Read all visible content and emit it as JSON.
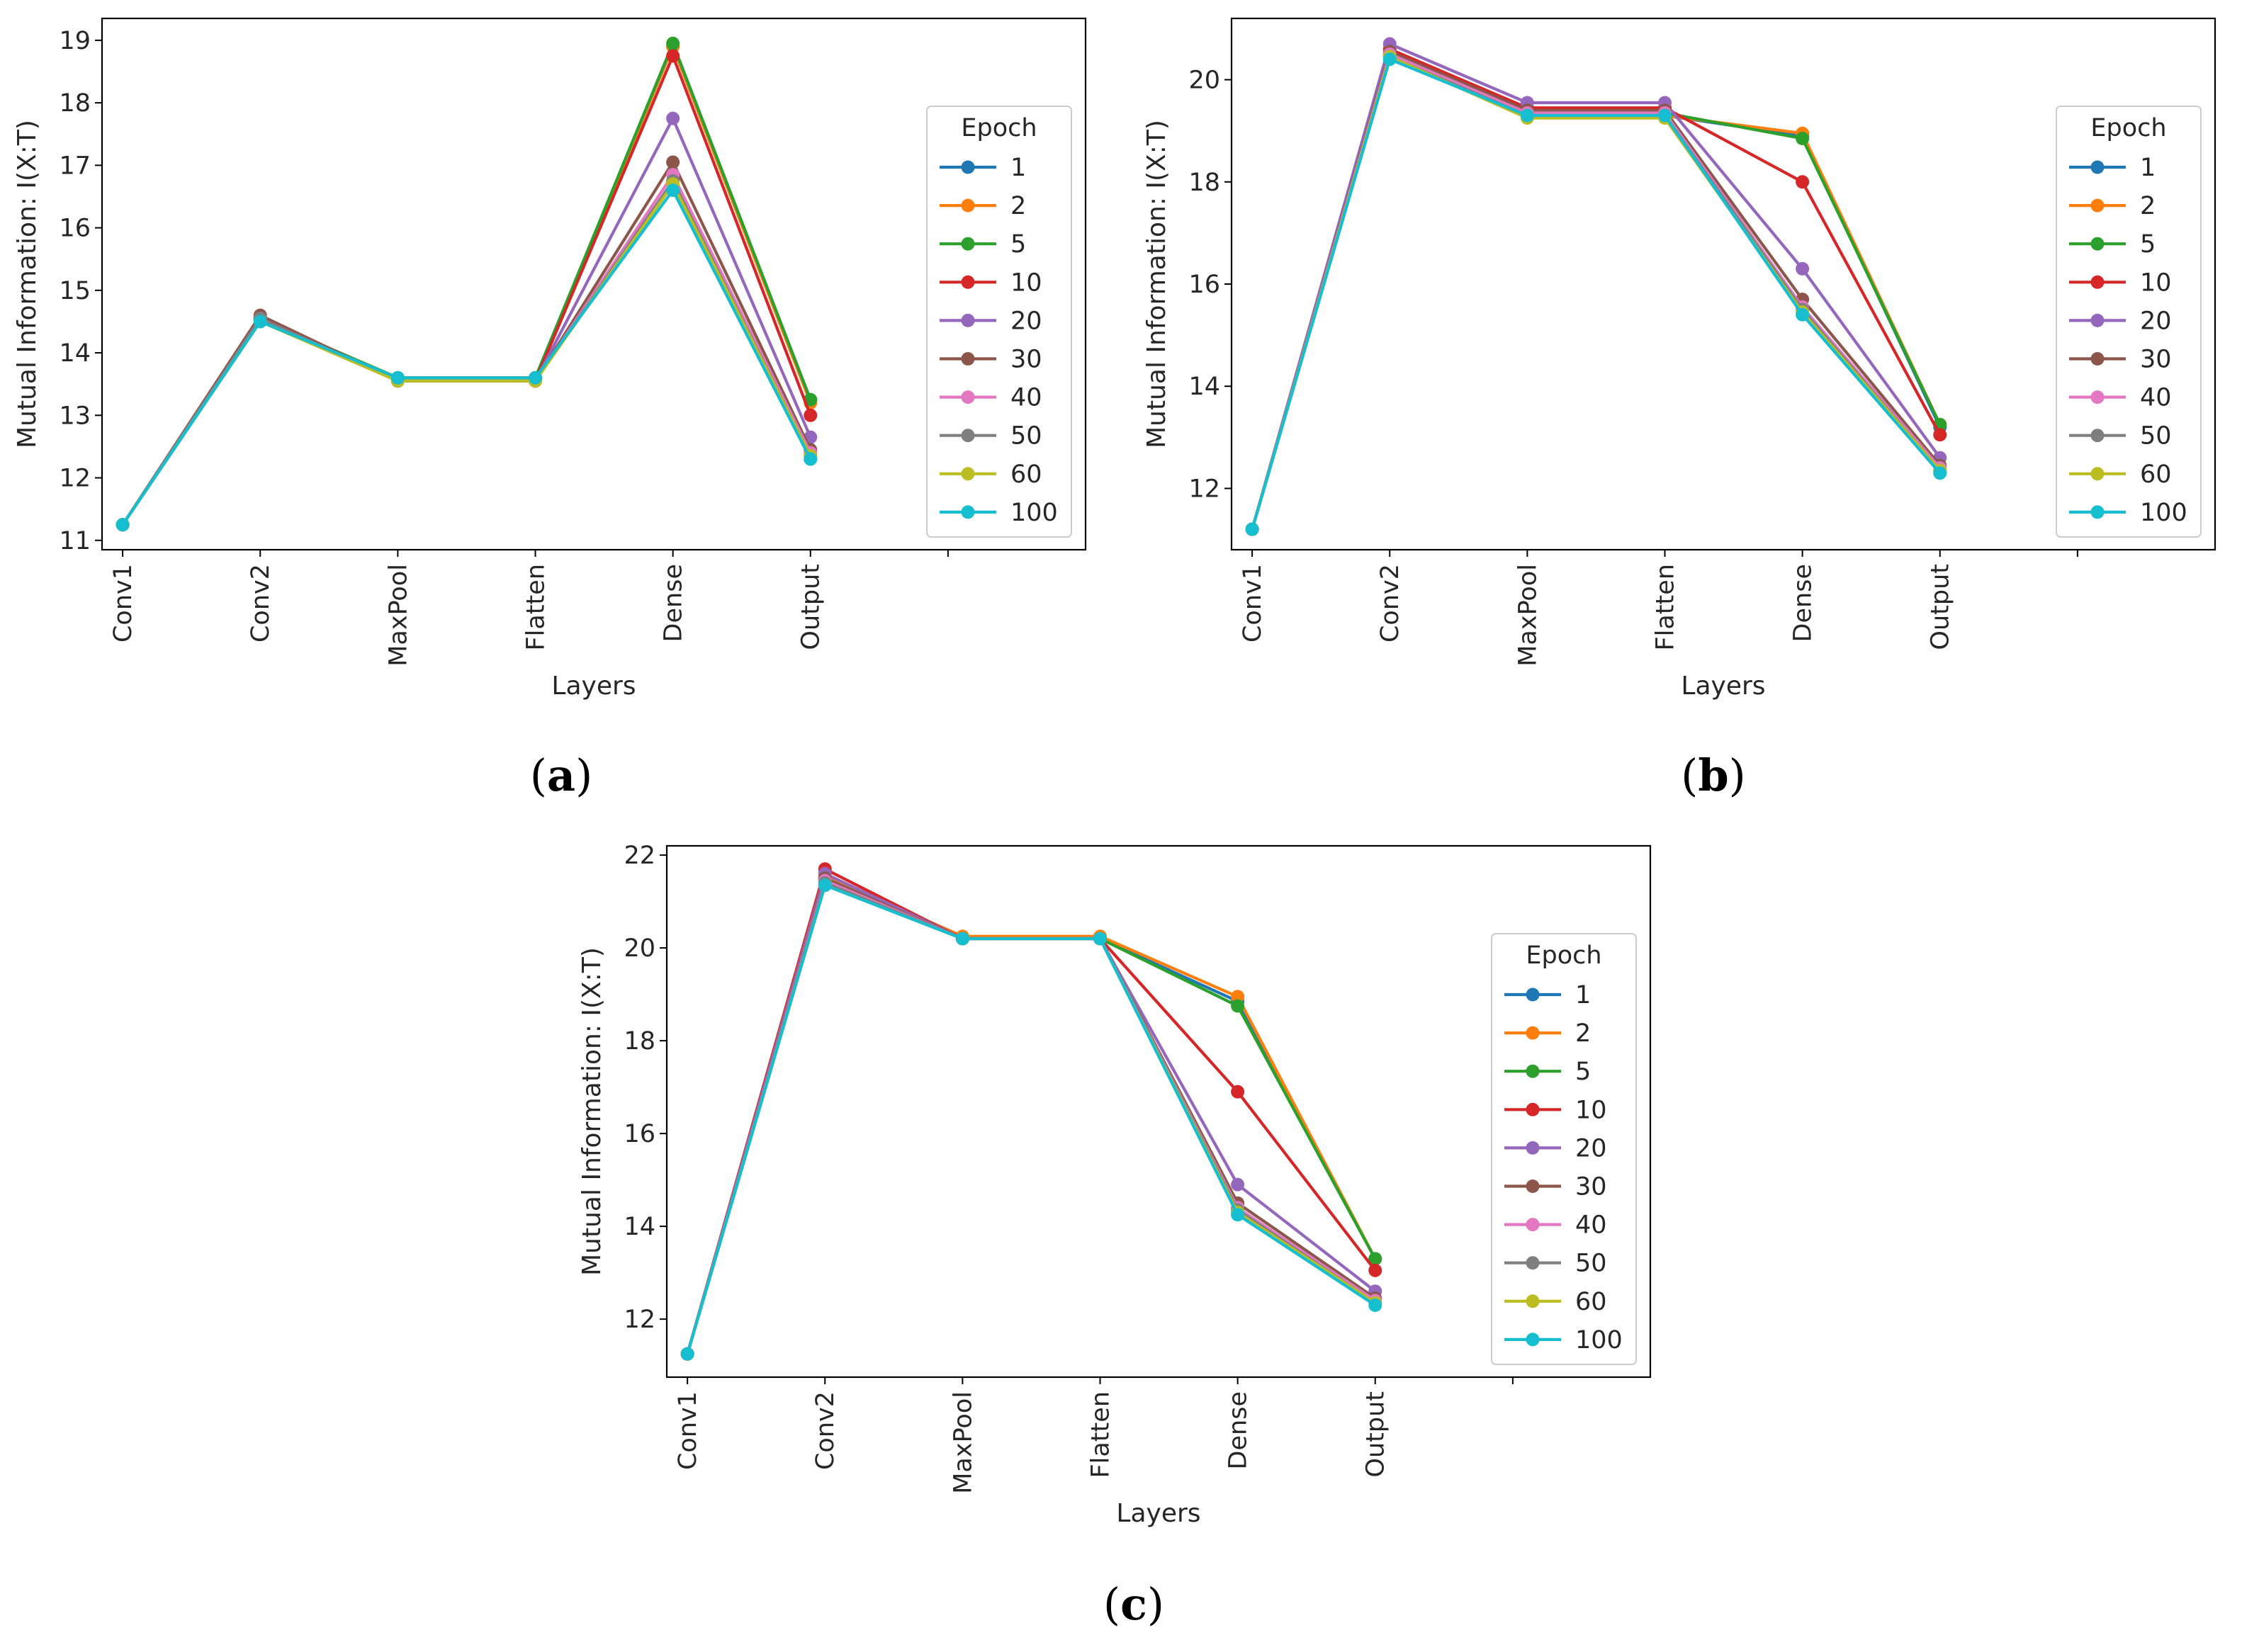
{
  "series_styles": [
    {
      "epoch": "1",
      "color": "#1f77b4"
    },
    {
      "epoch": "2",
      "color": "#ff7f0e"
    },
    {
      "epoch": "5",
      "color": "#2ca02c"
    },
    {
      "epoch": "10",
      "color": "#d62728"
    },
    {
      "epoch": "20",
      "color": "#9467bd"
    },
    {
      "epoch": "30",
      "color": "#8c564b"
    },
    {
      "epoch": "40",
      "color": "#e377c2"
    },
    {
      "epoch": "50",
      "color": "#7f7f7f"
    },
    {
      "epoch": "60",
      "color": "#bcbd22"
    },
    {
      "epoch": "100",
      "color": "#17becf"
    }
  ],
  "chart_data": [
    {
      "panel": "a",
      "caption": {
        "open": "(",
        "letter": "a",
        "close": ")"
      },
      "type": "line",
      "xlabel": "Layers",
      "ylabel": "Mutual Information: I(X:T)",
      "legend_title": "Epoch",
      "legend_position": "right",
      "categories": [
        "Conv1",
        "Conv2",
        "MaxPool",
        "Flatten",
        "Dense",
        "Output"
      ],
      "xlim": [
        -0.15,
        7.0
      ],
      "ylim": [
        10.85,
        19.35
      ],
      "yticks": [
        11,
        12,
        13,
        14,
        15,
        16,
        17,
        18,
        19
      ],
      "series": [
        {
          "name": "1",
          "values": [
            11.25,
            14.5,
            13.6,
            13.6,
            18.9,
            13.25
          ]
        },
        {
          "name": "2",
          "values": [
            11.25,
            14.55,
            13.6,
            13.6,
            18.9,
            13.2
          ]
        },
        {
          "name": "5",
          "values": [
            11.25,
            14.55,
            13.6,
            13.6,
            18.95,
            13.25
          ]
        },
        {
          "name": "10",
          "values": [
            11.25,
            14.55,
            13.55,
            13.55,
            18.75,
            13.0
          ]
        },
        {
          "name": "20",
          "values": [
            11.25,
            14.55,
            13.55,
            13.55,
            17.75,
            12.65
          ]
        },
        {
          "name": "30",
          "values": [
            11.25,
            14.6,
            13.55,
            13.55,
            17.05,
            12.45
          ]
        },
        {
          "name": "40",
          "values": [
            11.25,
            14.55,
            13.55,
            13.55,
            16.85,
            12.4
          ]
        },
        {
          "name": "50",
          "values": [
            11.25,
            14.55,
            13.55,
            13.55,
            16.75,
            12.35
          ]
        },
        {
          "name": "60",
          "values": [
            11.25,
            14.5,
            13.55,
            13.55,
            16.7,
            12.35
          ]
        },
        {
          "name": "100",
          "values": [
            11.25,
            14.5,
            13.6,
            13.6,
            16.6,
            12.3
          ]
        }
      ]
    },
    {
      "panel": "b",
      "caption": {
        "open": "(",
        "letter": "b",
        "close": ")"
      },
      "type": "line",
      "xlabel": "Layers",
      "ylabel": "Mutual Information: I(X:T)",
      "legend_title": "Epoch",
      "legend_position": "right",
      "categories": [
        "Conv1",
        "Conv2",
        "MaxPool",
        "Flatten",
        "Dense",
        "Output"
      ],
      "xlim": [
        -0.15,
        7.0
      ],
      "ylim": [
        10.8,
        21.2
      ],
      "yticks": [
        12,
        14,
        16,
        18,
        20
      ],
      "series": [
        {
          "name": "1",
          "values": [
            11.2,
            20.5,
            19.3,
            19.3,
            18.9,
            13.2
          ]
        },
        {
          "name": "2",
          "values": [
            11.2,
            20.5,
            19.3,
            19.3,
            18.95,
            13.25
          ]
        },
        {
          "name": "5",
          "values": [
            11.2,
            20.5,
            19.35,
            19.35,
            18.85,
            13.25
          ]
        },
        {
          "name": "10",
          "values": [
            11.2,
            20.6,
            19.45,
            19.45,
            18.0,
            13.05
          ]
        },
        {
          "name": "20",
          "values": [
            11.2,
            20.7,
            19.55,
            19.55,
            16.3,
            12.6
          ]
        },
        {
          "name": "30",
          "values": [
            11.2,
            20.55,
            19.4,
            19.4,
            15.7,
            12.45
          ]
        },
        {
          "name": "40",
          "values": [
            11.2,
            20.5,
            19.35,
            19.35,
            15.55,
            12.4
          ]
        },
        {
          "name": "50",
          "values": [
            11.2,
            20.45,
            19.3,
            19.3,
            15.5,
            12.35
          ]
        },
        {
          "name": "60",
          "values": [
            11.2,
            20.45,
            19.25,
            19.25,
            15.45,
            12.35
          ]
        },
        {
          "name": "100",
          "values": [
            11.2,
            20.4,
            19.3,
            19.3,
            15.4,
            12.3
          ]
        }
      ]
    },
    {
      "panel": "c",
      "caption": {
        "open": "(",
        "letter": "c",
        "close": ")"
      },
      "type": "line",
      "xlabel": "Layers",
      "ylabel": "Mutual Information: I(X:T)",
      "legend_title": "Epoch",
      "legend_position": "right",
      "categories": [
        "Conv1",
        "Conv2",
        "MaxPool",
        "Flatten",
        "Dense",
        "Output"
      ],
      "xlim": [
        -0.15,
        7.0
      ],
      "ylim": [
        10.75,
        22.2
      ],
      "yticks": [
        12,
        14,
        16,
        18,
        20,
        22
      ],
      "series": [
        {
          "name": "1",
          "values": [
            11.25,
            21.5,
            20.2,
            20.2,
            18.85,
            13.3
          ]
        },
        {
          "name": "2",
          "values": [
            11.25,
            21.55,
            20.25,
            20.25,
            18.95,
            13.3
          ]
        },
        {
          "name": "5",
          "values": [
            11.25,
            21.5,
            20.2,
            20.2,
            18.75,
            13.3
          ]
        },
        {
          "name": "10",
          "values": [
            11.25,
            21.7,
            20.2,
            20.2,
            16.9,
            13.05
          ]
        },
        {
          "name": "20",
          "values": [
            11.25,
            21.6,
            20.2,
            20.2,
            14.9,
            12.6
          ]
        },
        {
          "name": "30",
          "values": [
            11.25,
            21.5,
            20.2,
            20.2,
            14.5,
            12.45
          ]
        },
        {
          "name": "40",
          "values": [
            11.25,
            21.45,
            20.2,
            20.2,
            14.4,
            12.4
          ]
        },
        {
          "name": "50",
          "values": [
            11.25,
            21.4,
            20.2,
            20.2,
            14.35,
            12.35
          ]
        },
        {
          "name": "60",
          "values": [
            11.25,
            21.35,
            20.2,
            20.2,
            14.3,
            12.35
          ]
        },
        {
          "name": "100",
          "values": [
            11.25,
            21.35,
            20.2,
            20.2,
            14.25,
            12.3
          ]
        }
      ]
    }
  ]
}
